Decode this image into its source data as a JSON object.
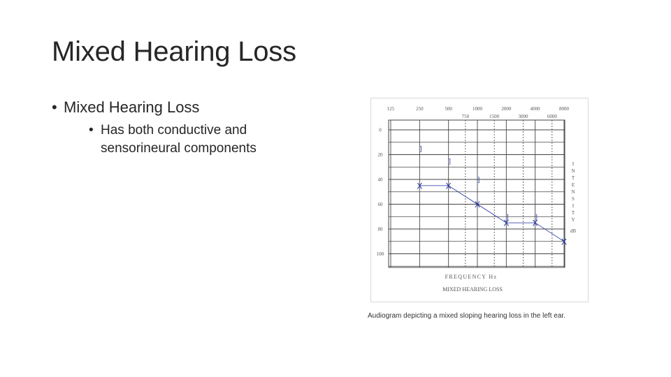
{
  "slide": {
    "title": "Mixed Hearing Loss",
    "bullet1": "Mixed Hearing Loss",
    "bullet2": "Has both conductive and sensorineural components"
  },
  "caption": "Audiogram depicting a mixed sloping hearing loss in the left ear.",
  "colors": {
    "air": "#1f2f9c",
    "bone": "#1f2f9c",
    "grid": "#444444",
    "text": "#262626"
  },
  "chart_data": {
    "type": "line",
    "title": "MIXED HEARING LOSS",
    "xlabel": "FREQUENCY Hz",
    "ylabel": "INTENSITY",
    "ylabel_unit": "dB",
    "x_ticks_top": [
      "125",
      "250",
      "500",
      "1000",
      "2000",
      "4000",
      "8000"
    ],
    "x_ticks_mid": [
      "750",
      "1500",
      "3000",
      "6000"
    ],
    "y_ticks": [
      "0",
      "20",
      "40",
      "60",
      "80",
      "100"
    ],
    "ylim": [
      -10,
      110
    ],
    "grid": true,
    "series": [
      {
        "marker": "X",
        "x": [
          250,
          500,
          1000,
          2000,
          4000,
          8000
        ],
        "y": [
          45,
          45,
          60,
          75,
          75,
          90
        ]
      },
      {
        "marker": "]",
        "x": [
          250,
          500,
          1000,
          2000,
          4000
        ],
        "y": [
          15,
          25,
          40,
          70,
          70
        ]
      }
    ]
  }
}
